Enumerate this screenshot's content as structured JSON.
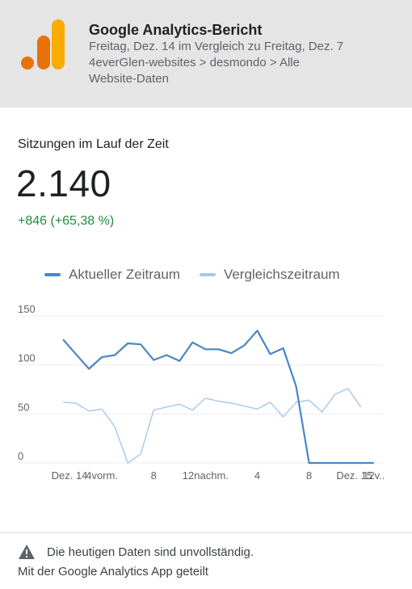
{
  "header": {
    "title": "Google Analytics-Bericht",
    "line1": "Freitag, Dez. 14 im Vergleich zu Freitag, Dez. 7",
    "line2": "4everGlen-websites > desmondo > Alle",
    "line3": "Website-Daten",
    "logo_icon": "google-analytics-logo-icon",
    "logo_colors": [
      "#e8710a",
      "#f9ab00"
    ]
  },
  "section": {
    "title": "Sitzungen im Lauf der Zeit",
    "value": "2.140",
    "delta": "+846 (+65,38 %)"
  },
  "legend": {
    "current": "Aktueller Zeitraum",
    "comparison": "Vergleichszeitraum"
  },
  "colors": {
    "current": "#4a86c8",
    "comparison": "#a8c7ee",
    "delta_positive": "#1e8e3e"
  },
  "chart_data": {
    "type": "line",
    "ylim": [
      0,
      150
    ],
    "y_ticks": [
      0,
      50,
      100,
      150
    ],
    "x": [
      0,
      1,
      2,
      3,
      4,
      5,
      6,
      7,
      8,
      9,
      10,
      11,
      12,
      13,
      14,
      15,
      16,
      17,
      18,
      19,
      20,
      21,
      22,
      23,
      24
    ],
    "x_tick_labels": [
      {
        "x": 0.5,
        "label": "Dez. 14"
      },
      {
        "x": 3,
        "label": "4vorm."
      },
      {
        "x": 7,
        "label": "8"
      },
      {
        "x": 11,
        "label": "12nachm."
      },
      {
        "x": 15,
        "label": "4"
      },
      {
        "x": 19,
        "label": "8"
      },
      {
        "x": 22.5,
        "label": "Dez. 15"
      },
      {
        "x": 24,
        "label": "12v.."
      }
    ],
    "series": [
      {
        "name": "Aktueller Zeitraum",
        "values": [
          126,
          111,
          96,
          108,
          110,
          122,
          121,
          105,
          110,
          104,
          123,
          116,
          116,
          112,
          120,
          135,
          111,
          117,
          78,
          0,
          0,
          0,
          0,
          0,
          0
        ]
      },
      {
        "name": "Vergleichszeitraum",
        "values": [
          62,
          61,
          53,
          55,
          37,
          0,
          9,
          54,
          57,
          60,
          54,
          66,
          63,
          61,
          58,
          55,
          62,
          47,
          62,
          64,
          52,
          70,
          76,
          57,
          null
        ]
      }
    ]
  },
  "footer": {
    "warning": "Die heutigen Daten sind unvollständig.",
    "warning_icon": "warning-triangle-icon",
    "shared": "Mit der Google Analytics App geteilt"
  }
}
